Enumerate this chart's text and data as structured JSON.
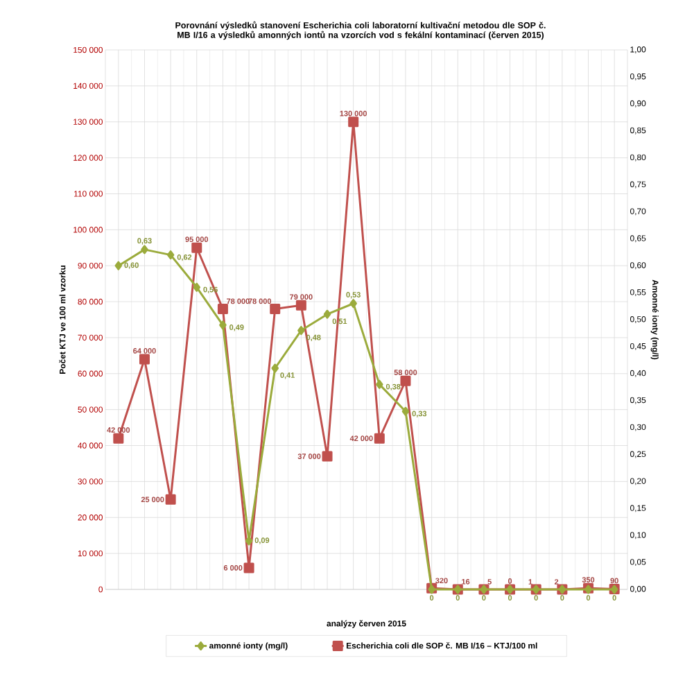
{
  "chart_data": {
    "type": "line",
    "title": "Porovnání výsledků stanovení Escherichia coli laboratorní kultivační metodou dle SOP č. MB I/16 a výsledků amonných iontů na vzorcích vod s fekální kontaminací (červen 2015)",
    "xlabel": "analýzy  červen 2015",
    "ylabel": "Počet KTJ ve 100 ml vzorku",
    "y2label": "Amonné ionty (mg/l)",
    "categories": [
      null,
      null,
      null,
      null,
      null,
      null,
      null,
      null,
      null,
      null,
      null,
      null,
      null,
      null,
      null,
      null,
      null,
      null,
      null,
      null
    ],
    "series": [
      {
        "name": "Escherichia coli dle SOP č. MB I/16 – KTJ/100 ml",
        "color": "#c0504d",
        "marker": "square",
        "values": [
          42000,
          64000,
          25000,
          95000,
          78000,
          6000,
          78000,
          79000,
          37000,
          130000,
          42000,
          58000,
          320,
          16,
          5,
          0,
          1,
          2,
          350,
          90
        ],
        "value_labels": [
          "42 000",
          "64 000",
          "25 000",
          "95 000",
          "78 000",
          "6 000",
          "78 000",
          "79 000",
          "37 000",
          "130 000",
          "42 000",
          "58 000",
          "320",
          "16",
          "5",
          "0",
          "1",
          "2",
          "350",
          "90"
        ]
      },
      {
        "name": "amonné ionty (mg/l)",
        "color": "#9bab3c",
        "marker": "diamond",
        "axis": "y2",
        "values": [
          0.6,
          0.63,
          0.62,
          0.56,
          0.49,
          0.09,
          0.41,
          0.48,
          0.51,
          0.53,
          0.38,
          0.33,
          0,
          0,
          0,
          0,
          0,
          0,
          0,
          0
        ],
        "value_labels": [
          "0,60",
          "0,63",
          "0,62",
          "0,56",
          "0,49",
          "0,09",
          "0,41",
          "0,48",
          "0,51",
          "0,53",
          "0,38",
          "0,33",
          "0",
          "0",
          "0",
          "0",
          "0",
          "0",
          "0",
          "0"
        ]
      }
    ],
    "ylim": [
      0,
      150000
    ],
    "yticks": [
      {
        "value": 0,
        "label": "0"
      },
      {
        "value": 10000,
        "label": "10 000"
      },
      {
        "value": 20000,
        "label": "20 000"
      },
      {
        "value": 30000,
        "label": "30 000"
      },
      {
        "value": 40000,
        "label": "40 000"
      },
      {
        "value": 50000,
        "label": "50 000"
      },
      {
        "value": 60000,
        "label": "60 000"
      },
      {
        "value": 70000,
        "label": "70 000"
      },
      {
        "value": 80000,
        "label": "80 000"
      },
      {
        "value": 90000,
        "label": "90 000"
      },
      {
        "value": 100000,
        "label": "100 000"
      },
      {
        "value": 110000,
        "label": "110 000"
      },
      {
        "value": 120000,
        "label": "120 000"
      },
      {
        "value": 130000,
        "label": "130 000"
      },
      {
        "value": 140000,
        "label": "140 000"
      },
      {
        "value": 150000,
        "label": "150 000"
      }
    ],
    "y2lim": [
      0,
      1
    ],
    "y2ticks": [
      {
        "value": 0,
        "label": "0,00"
      },
      {
        "value": 0.05,
        "label": "0,05"
      },
      {
        "value": 0.1,
        "label": "0,10"
      },
      {
        "value": 0.15,
        "label": "0,15"
      },
      {
        "value": 0.2,
        "label": "0,20"
      },
      {
        "value": 0.25,
        "label": "0,25"
      },
      {
        "value": 0.3,
        "label": "0,30"
      },
      {
        "value": 0.35,
        "label": "0,35"
      },
      {
        "value": 0.4,
        "label": "0,40"
      },
      {
        "value": 0.45,
        "label": "0,45"
      },
      {
        "value": 0.5,
        "label": "0,50"
      },
      {
        "value": 0.55,
        "label": "0,55"
      },
      {
        "value": 0.6,
        "label": "0,60"
      },
      {
        "value": 0.65,
        "label": "0,65"
      },
      {
        "value": 0.7,
        "label": "0,70"
      },
      {
        "value": 0.75,
        "label": "0,75"
      },
      {
        "value": 0.8,
        "label": "0,80"
      },
      {
        "value": 0.85,
        "label": "0,85"
      },
      {
        "value": 0.9,
        "label": "0,90"
      },
      {
        "value": 0.95,
        "label": "0,95"
      },
      {
        "value": 1,
        "label": "1,00"
      }
    ],
    "grid": true,
    "legend": "bottom"
  }
}
